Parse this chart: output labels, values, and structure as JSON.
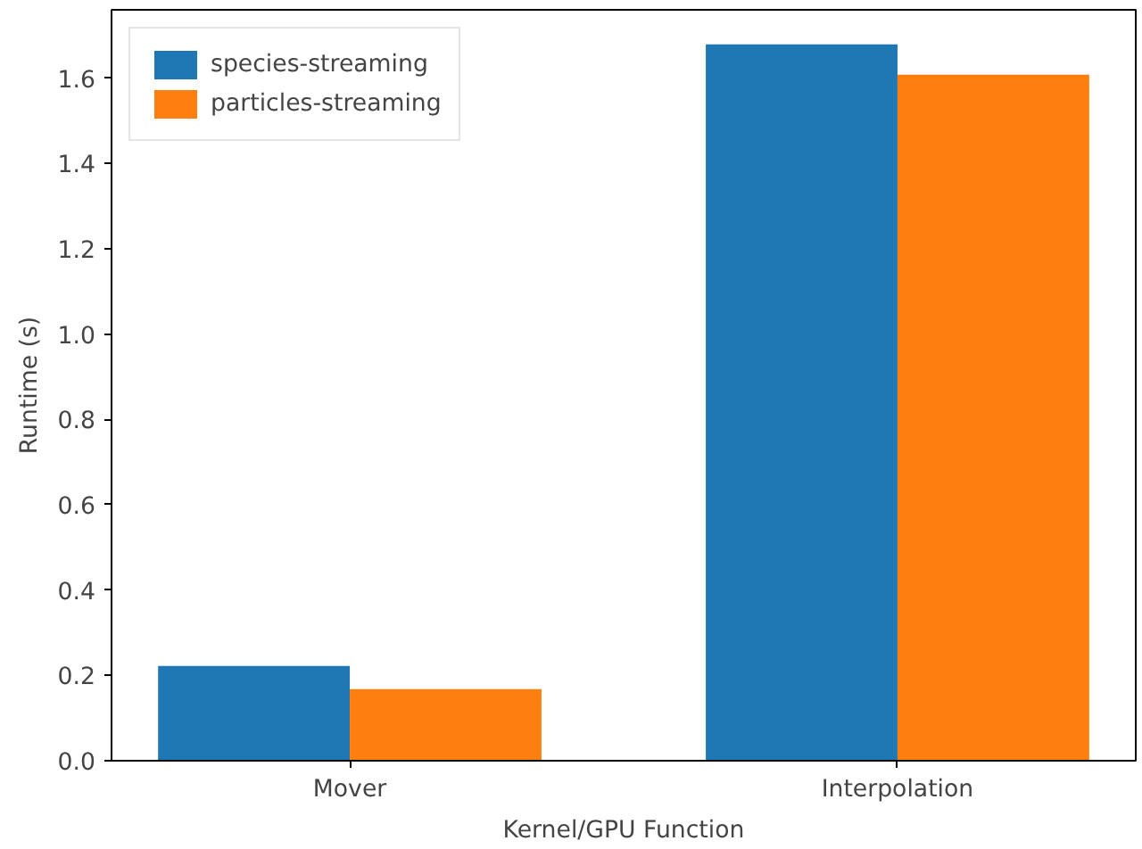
{
  "chart_data": {
    "type": "bar",
    "xlabel": "Kernel/GPU Function",
    "ylabel": "Runtime (s)",
    "categories": [
      "Mover",
      "Interpolation"
    ],
    "series": [
      {
        "name": "species-streaming",
        "color": "#1f77b4",
        "values": [
          0.222,
          1.679
        ]
      },
      {
        "name": "particles-streaming",
        "color": "#ff7f0e",
        "values": [
          0.168,
          1.608
        ]
      }
    ],
    "ylim": [
      0,
      1.76
    ],
    "yticks": [
      {
        "value": 0,
        "label": "0.0"
      },
      0.2,
      0.4,
      0.6,
      0.8,
      {
        "value": 1,
        "label": "1.0"
      },
      1.2,
      1.4,
      1.6
    ],
    "grid": false,
    "legend": "top left"
  }
}
